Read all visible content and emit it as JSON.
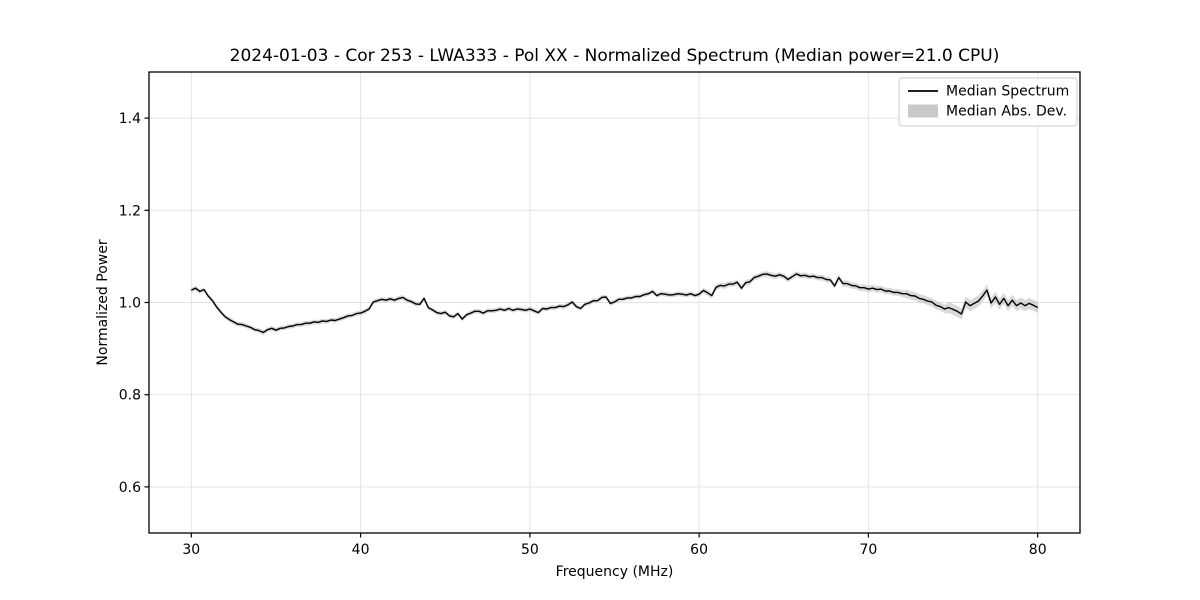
{
  "colors": {
    "line": "#000000",
    "band_fill": "#aaaaaa",
    "band_opacity": 0.45,
    "grid": "#e3e3e3",
    "frame": "#000000",
    "legend_edge": "#cccccc",
    "legend_patch": "#c9c9c9",
    "background": "#ffffff"
  },
  "chart_data": {
    "type": "line",
    "title": "2024-01-03 - Cor 253 - LWA333 - Pol XX - Normalized Spectrum (Median power=21.0 CPU)",
    "xlabel": "Frequency (MHz)",
    "ylabel": "Normalized Power",
    "xlim": [
      27.5,
      82.5
    ],
    "ylim": [
      0.5,
      1.5
    ],
    "xticks": [
      30,
      40,
      50,
      60,
      70,
      80
    ],
    "xtick_labels": [
      "30",
      "40",
      "50",
      "60",
      "70",
      "80"
    ],
    "yticks": [
      0.6,
      0.8,
      1.0,
      1.2,
      1.4
    ],
    "ytick_labels": [
      "0.6",
      "0.8",
      "1.0",
      "1.2",
      "1.4"
    ],
    "grid": true,
    "legend": {
      "position": "upper right",
      "entries": [
        {
          "label": "Median Spectrum",
          "type": "line",
          "color": "#000000"
        },
        {
          "label": "Median Abs. Dev.",
          "type": "patch",
          "color": "#c9c9c9"
        }
      ]
    },
    "series": [
      {
        "name": "Median Spectrum",
        "x": [
          30.0,
          30.25,
          30.5,
          30.75,
          31.0,
          31.25,
          31.5,
          31.75,
          32.0,
          32.25,
          32.5,
          32.75,
          33.0,
          33.25,
          33.5,
          33.75,
          34.0,
          34.25,
          34.5,
          34.75,
          35.0,
          35.25,
          35.5,
          35.75,
          36.0,
          36.25,
          36.5,
          36.75,
          37.0,
          37.25,
          37.5,
          37.75,
          38.0,
          38.25,
          38.5,
          38.75,
          39.0,
          39.25,
          39.5,
          39.75,
          40.0,
          40.25,
          40.5,
          40.75,
          41.0,
          41.25,
          41.5,
          41.75,
          42.0,
          42.25,
          42.5,
          42.75,
          43.0,
          43.25,
          43.5,
          43.75,
          44.0,
          44.25,
          44.5,
          44.75,
          45.0,
          45.25,
          45.5,
          45.75,
          46.0,
          46.25,
          46.5,
          46.75,
          47.0,
          47.25,
          47.5,
          47.75,
          48.0,
          48.25,
          48.5,
          48.75,
          49.0,
          49.25,
          49.5,
          49.75,
          50.0,
          50.25,
          50.5,
          50.75,
          51.0,
          51.25,
          51.5,
          51.75,
          52.0,
          52.25,
          52.5,
          52.75,
          53.0,
          53.25,
          53.5,
          53.75,
          54.0,
          54.25,
          54.5,
          54.75,
          55.0,
          55.25,
          55.5,
          55.75,
          56.0,
          56.25,
          56.5,
          56.75,
          57.0,
          57.25,
          57.5,
          57.75,
          58.0,
          58.25,
          58.5,
          58.75,
          59.0,
          59.25,
          59.5,
          59.75,
          60.0,
          60.25,
          60.5,
          60.75,
          61.0,
          61.25,
          61.5,
          61.75,
          62.0,
          62.25,
          62.5,
          62.75,
          63.0,
          63.25,
          63.5,
          63.75,
          64.0,
          64.25,
          64.5,
          64.75,
          65.0,
          65.25,
          65.5,
          65.75,
          66.0,
          66.25,
          66.5,
          66.75,
          67.0,
          67.25,
          67.5,
          67.75,
          68.0,
          68.25,
          68.5,
          68.75,
          69.0,
          69.25,
          69.5,
          69.75,
          70.0,
          70.25,
          70.5,
          70.75,
          71.0,
          71.25,
          71.5,
          71.75,
          72.0,
          72.25,
          72.5,
          72.75,
          73.0,
          73.25,
          73.5,
          73.75,
          74.0,
          74.25,
          74.5,
          74.75,
          75.0,
          75.25,
          75.5,
          75.75,
          76.0,
          76.25,
          76.5,
          76.75,
          77.0,
          77.25,
          77.5,
          77.75,
          78.0,
          78.25,
          78.5,
          78.75,
          79.0,
          79.25,
          79.5,
          79.75,
          80.0
        ],
        "y": [
          1.027,
          1.031,
          1.024,
          1.028,
          1.014,
          1.004,
          0.99,
          0.979,
          0.969,
          0.963,
          0.958,
          0.953,
          0.952,
          0.949,
          0.946,
          0.941,
          0.939,
          0.935,
          0.941,
          0.944,
          0.94,
          0.944,
          0.945,
          0.948,
          0.949,
          0.952,
          0.952,
          0.955,
          0.955,
          0.958,
          0.957,
          0.96,
          0.959,
          0.962,
          0.961,
          0.964,
          0.967,
          0.971,
          0.972,
          0.976,
          0.977,
          0.981,
          0.986,
          1.001,
          1.004,
          1.007,
          1.005,
          1.008,
          1.005,
          1.009,
          1.011,
          1.005,
          1.002,
          0.997,
          0.996,
          1.009,
          0.989,
          0.984,
          0.978,
          0.976,
          0.979,
          0.971,
          0.969,
          0.976,
          0.964,
          0.973,
          0.977,
          0.981,
          0.981,
          0.977,
          0.982,
          0.982,
          0.983,
          0.986,
          0.983,
          0.987,
          0.983,
          0.986,
          0.985,
          0.983,
          0.986,
          0.982,
          0.978,
          0.987,
          0.986,
          0.989,
          0.989,
          0.992,
          0.991,
          0.995,
          1.001,
          0.991,
          0.987,
          0.996,
          0.999,
          1.004,
          1.004,
          1.011,
          1.012,
          0.998,
          1.001,
          1.007,
          1.007,
          1.01,
          1.01,
          1.013,
          1.013,
          1.017,
          1.019,
          1.024,
          1.015,
          1.019,
          1.018,
          1.016,
          1.017,
          1.019,
          1.018,
          1.016,
          1.019,
          1.015,
          1.018,
          1.026,
          1.021,
          1.015,
          1.033,
          1.037,
          1.036,
          1.04,
          1.04,
          1.044,
          1.031,
          1.043,
          1.045,
          1.054,
          1.057,
          1.061,
          1.062,
          1.059,
          1.057,
          1.06,
          1.057,
          1.05,
          1.056,
          1.062,
          1.058,
          1.059,
          1.056,
          1.057,
          1.054,
          1.054,
          1.05,
          1.049,
          1.036,
          1.054,
          1.041,
          1.041,
          1.037,
          1.036,
          1.032,
          1.032,
          1.029,
          1.031,
          1.028,
          1.029,
          1.025,
          1.025,
          1.022,
          1.022,
          1.019,
          1.019,
          1.015,
          1.014,
          1.009,
          1.007,
          1.003,
          1.001,
          0.994,
          0.991,
          0.986,
          0.989,
          0.985,
          0.981,
          0.975,
          1.001,
          0.993,
          0.998,
          1.003,
          1.014,
          1.027,
          0.999,
          1.012,
          0.996,
          1.009,
          0.993,
          1.005,
          0.993,
          0.999,
          0.993,
          0.998,
          0.994,
          0.989
        ]
      }
    ],
    "band": {
      "name": "Median Abs. Dev.",
      "half_width_segments": [
        {
          "from": 30.0,
          "to": 60.0,
          "half_width": 0.005
        },
        {
          "from": 60.0,
          "to": 68.0,
          "half_width": 0.006
        },
        {
          "from": 68.0,
          "to": 72.0,
          "half_width": 0.007
        },
        {
          "from": 72.0,
          "to": 74.5,
          "half_width": 0.009
        },
        {
          "from": 74.5,
          "to": 80.0,
          "half_width": 0.012
        }
      ]
    }
  }
}
